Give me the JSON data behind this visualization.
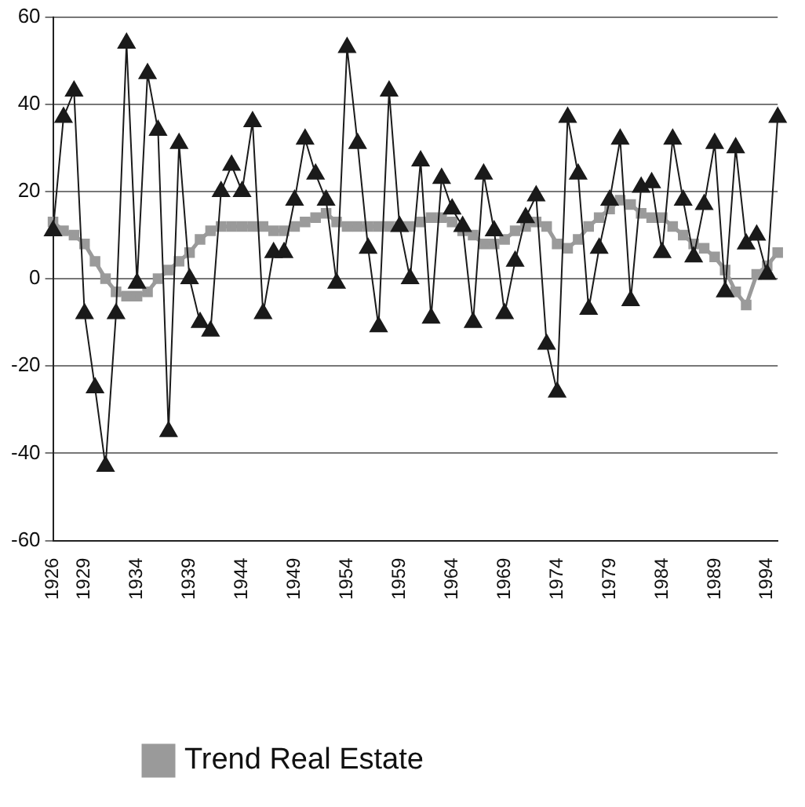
{
  "chart_data": {
    "type": "line",
    "categories": [
      "1926",
      null,
      null,
      "1929",
      null,
      null,
      null,
      null,
      "1934",
      null,
      null,
      null,
      null,
      "1939",
      null,
      null,
      null,
      null,
      "1944",
      null,
      null,
      null,
      null,
      "1949",
      null,
      null,
      null,
      null,
      "1954",
      null,
      null,
      null,
      null,
      "1959",
      null,
      null,
      null,
      null,
      "1964",
      null,
      null,
      null,
      null,
      "1969",
      null,
      null,
      null,
      null,
      "1974",
      null,
      null,
      null,
      null,
      "1979",
      null,
      null,
      null,
      null,
      "1984",
      null,
      null,
      null,
      null,
      "1989",
      null,
      null,
      null,
      null,
      "1994",
      null
    ],
    "series": [
      {
        "name": "Trend Real Estate",
        "color": "#9a9a9a",
        "marker": "square",
        "values": [
          13,
          11,
          10,
          8,
          4,
          0,
          -3,
          -4,
          -4,
          -3,
          0,
          2,
          4,
          6,
          9,
          11,
          12,
          12,
          12,
          12,
          12,
          11,
          11,
          12,
          13,
          14,
          15,
          13,
          12,
          12,
          12,
          12,
          12,
          12,
          12,
          13,
          14,
          14,
          13,
          11,
          10,
          8,
          8,
          9,
          11,
          12,
          13,
          12,
          8,
          7,
          9,
          12,
          14,
          16,
          18,
          17,
          15,
          14,
          14,
          12,
          10,
          8,
          7,
          5,
          2,
          -3,
          -6,
          1,
          3,
          6
        ]
      },
      {
        "color": "#1a1a1a",
        "marker": "triangle",
        "values": [
          11,
          37,
          43,
          -8,
          -25,
          -43,
          -8,
          54,
          -1,
          47,
          34,
          -35,
          31,
          0,
          -10,
          -12,
          20,
          26,
          20,
          36,
          -8,
          6,
          6,
          18,
          32,
          24,
          18,
          -1,
          53,
          31,
          7,
          -11,
          43,
          12,
          0,
          27,
          -9,
          23,
          16,
          12,
          -10,
          24,
          11,
          -8,
          4,
          14,
          19,
          -15,
          -26,
          37,
          24,
          -7,
          7,
          18,
          32,
          -5,
          21,
          22,
          6,
          32,
          18,
          5,
          17,
          31,
          -3,
          30,
          8,
          10,
          1,
          37
        ]
      }
    ],
    "ylim": [
      -60,
      60
    ],
    "yticks": [
      -60,
      -40,
      -20,
      0,
      20,
      40,
      60
    ],
    "grid": "y",
    "legend": "bottom",
    "line_style": "solid"
  }
}
